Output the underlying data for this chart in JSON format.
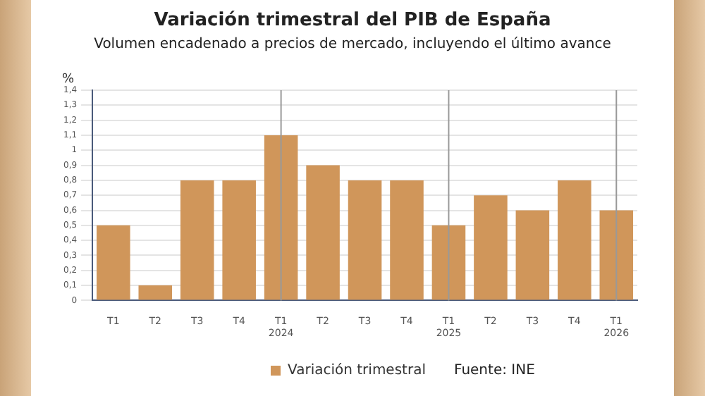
{
  "chart_data": {
    "type": "bar",
    "title": "Variación trimestral del PIB de España",
    "subtitle": "Volumen encadenado a precios de mercado, incluyendo el último avance",
    "ylabel": "%",
    "categories": [
      "T1",
      "T2",
      "T3",
      "T4",
      "T1\n2024",
      "T2",
      "T3",
      "T4",
      "T1\n2025",
      "T2",
      "T3",
      "T4",
      "T1\n2026"
    ],
    "series": [
      {
        "name": "Variación trimestral",
        "color": "#d0965a",
        "values": [
          0.5,
          0.1,
          0.8,
          0.8,
          1.1,
          0.9,
          0.8,
          0.8,
          0.5,
          0.7,
          0.6,
          0.8,
          0.6
        ]
      }
    ],
    "ylim": [
      0,
      1.4
    ],
    "yticks": [
      0,
      {
        "value": 0.1,
        "label": "0,1"
      },
      {
        "value": 0.2,
        "label": "0,2"
      },
      {
        "value": 0.3,
        "label": "0,3"
      },
      {
        "value": 0.4,
        "label": "0,4"
      },
      {
        "value": 0.5,
        "label": "0,5"
      },
      {
        "value": 0.6,
        "label": "0,6"
      },
      {
        "value": 0.7,
        "label": "0,7"
      },
      {
        "value": 0.8,
        "label": "0,8"
      },
      {
        "value": 0.9,
        "label": "0,9"
      },
      1,
      {
        "value": 1.1,
        "label": "1,1"
      },
      {
        "value": 1.2,
        "label": "1,2"
      },
      {
        "value": 1.3,
        "label": "1,3"
      },
      {
        "value": 1.4,
        "label": "1,4"
      }
    ],
    "ref_lines": [
      {
        "axis": "x",
        "value": "T1\n2024",
        "color": "#999999"
      },
      {
        "axis": "x",
        "value": "T1\n2025",
        "color": "#999999"
      },
      {
        "axis": "x",
        "value": "T1\n2026",
        "color": "#999999"
      }
    ],
    "grid": "y",
    "legend": "bottom",
    "annotations": [
      "Fuente: INE"
    ]
  }
}
